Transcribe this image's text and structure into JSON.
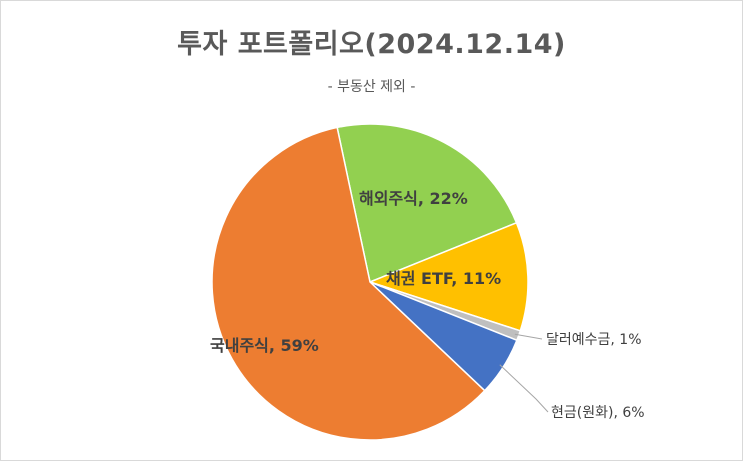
{
  "chart_data": {
    "type": "pie",
    "title": "투자 포트폴리오(2024.12.14)",
    "subtitle": "- 부동산 제외 -",
    "slices": [
      {
        "label": "해외주식, 22%",
        "name": "해외주식",
        "value": 22,
        "color": "#92D050"
      },
      {
        "label": "채권 ETF, 11%",
        "name": "채권 ETF",
        "value": 11,
        "color": "#FFC000"
      },
      {
        "label": "달러예수금, 1%",
        "name": "달러예수금",
        "value": 1,
        "color": "#BFBFBF"
      },
      {
        "label": "현금(원화), 6%",
        "name": "현금(원화)",
        "value": 6,
        "color": "#4472C4"
      },
      {
        "label": "국내주식, 59%",
        "name": "국내주식",
        "value": 59,
        "color": "#ED7D31"
      }
    ]
  }
}
